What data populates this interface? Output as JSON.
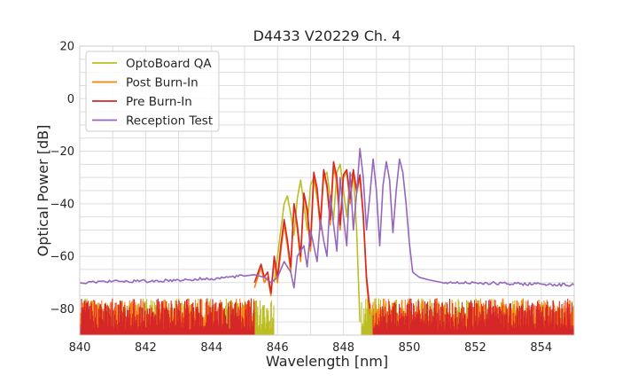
{
  "chart_data": {
    "type": "line",
    "title": "D4433 V20229 Ch. 4",
    "xlabel": "Wavelength [nm]",
    "ylabel": "Optical Power [dB]",
    "xlim": [
      840,
      855
    ],
    "ylim": [
      -90,
      20
    ],
    "xticks": [
      840,
      842,
      844,
      846,
      848,
      850,
      852,
      854
    ],
    "yticks": [
      20,
      0,
      -20,
      -40,
      -60,
      -80
    ],
    "xtick_labels": [
      "840",
      "842",
      "844",
      "846",
      "848",
      "850",
      "852",
      "854"
    ],
    "ytick_labels": [
      "20",
      "0",
      "−20",
      "−40",
      "−60",
      "−80"
    ],
    "grid": true,
    "legend_position": "top-left",
    "series": [
      {
        "name": "OptoBoard QA",
        "color": "#bcbd22",
        "noise_floor": -82,
        "noise_range": [
          840,
          845.9
        ],
        "x": [
          845.9,
          846.0,
          846.1,
          846.2,
          846.3,
          846.4,
          846.5,
          846.6,
          846.7,
          846.8,
          846.9,
          847.0,
          847.1,
          847.2,
          847.3,
          847.4,
          847.5,
          847.6,
          847.7,
          847.8,
          847.9,
          848.0,
          848.1,
          848.2,
          848.3,
          848.4,
          848.5
        ],
        "values": [
          -70,
          -60,
          -50,
          -40,
          -37,
          -44,
          -52,
          -38,
          -31,
          -40,
          -50,
          -33,
          -30,
          -38,
          -46,
          -30,
          -28,
          -38,
          -46,
          -28,
          -25,
          -35,
          -45,
          -30,
          -28,
          -50,
          -85
        ],
        "trailing_noise_from": 848.55
      },
      {
        "name": "Post Burn-In",
        "color": "#ff7f0e",
        "noise_floor": -82,
        "noise_range": [
          840,
          845.3
        ],
        "x": [
          845.3,
          845.5,
          845.6,
          845.7,
          845.8,
          845.9,
          846.0,
          846.1,
          846.2,
          846.3,
          846.4,
          846.5,
          846.6,
          846.7,
          846.8,
          846.9,
          847.0,
          847.1,
          847.2,
          847.3,
          847.4,
          847.5,
          847.6,
          847.7,
          847.8,
          847.9,
          848.0,
          848.1,
          848.2,
          848.3,
          848.4,
          848.5,
          848.6,
          848.7,
          848.8
        ],
        "values": [
          -72,
          -64,
          -70,
          -68,
          -75,
          -62,
          -70,
          -58,
          -48,
          -56,
          -66,
          -40,
          -50,
          -62,
          -36,
          -44,
          -58,
          -30,
          -36,
          -50,
          -28,
          -34,
          -48,
          -26,
          -32,
          -50,
          -30,
          -28,
          -40,
          -28,
          -36,
          -30,
          -45,
          -70,
          -82
        ],
        "trailing_noise_from": 848.9
      },
      {
        "name": "Pre Burn-In",
        "color": "#d62728",
        "noise_floor": -82,
        "noise_range": [
          840,
          845.3
        ],
        "x": [
          845.3,
          845.5,
          845.6,
          845.7,
          845.8,
          845.9,
          846.0,
          846.1,
          846.2,
          846.3,
          846.4,
          846.5,
          846.6,
          846.7,
          846.8,
          846.9,
          847.0,
          847.1,
          847.2,
          847.3,
          847.4,
          847.5,
          847.6,
          847.7,
          847.8,
          847.9,
          848.0,
          848.1,
          848.2,
          848.3,
          848.4,
          848.5,
          848.6,
          848.7,
          848.8
        ],
        "values": [
          -70,
          -63,
          -68,
          -66,
          -74,
          -60,
          -68,
          -56,
          -46,
          -54,
          -64,
          -40,
          -48,
          -60,
          -36,
          -42,
          -56,
          -28,
          -34,
          -48,
          -27,
          -33,
          -46,
          -24,
          -30,
          -48,
          -29,
          -27,
          -38,
          -27,
          -35,
          -29,
          -44,
          -68,
          -80
        ],
        "trailing_noise_from": 848.9
      },
      {
        "name": "Reception Test",
        "color": "#9467bd",
        "baseline": -70,
        "x": [
          840,
          841,
          842,
          843,
          844,
          844.5,
          845,
          845.3,
          845.6,
          845.8,
          846.0,
          846.2,
          846.4,
          846.5,
          846.6,
          846.8,
          846.9,
          847.0,
          847.1,
          847.2,
          847.3,
          847.4,
          847.5,
          847.6,
          847.7,
          847.8,
          847.9,
          848.0,
          848.1,
          848.2,
          848.3,
          848.4,
          848.5,
          848.6,
          848.7,
          848.8,
          848.9,
          849.0,
          849.1,
          849.2,
          849.3,
          849.4,
          849.5,
          849.6,
          849.7,
          849.8,
          849.9,
          850.0,
          850.1,
          850.3,
          850.6,
          851,
          852,
          853,
          854,
          855
        ],
        "values": [
          -70,
          -69.5,
          -69.5,
          -69,
          -68.5,
          -68,
          -67.5,
          -67,
          -68,
          -70,
          -68,
          -62,
          -66,
          -72,
          -60,
          -56,
          -64,
          -50,
          -56,
          -62,
          -46,
          -54,
          -60,
          -37,
          -48,
          -58,
          -30,
          -45,
          -56,
          -28,
          -50,
          -36,
          -19,
          -30,
          -50,
          -37,
          -23,
          -35,
          -56,
          -33,
          -24,
          -31,
          -51,
          -35,
          -23,
          -28,
          -40,
          -55,
          -66,
          -68,
          -69,
          -70,
          -70,
          -70.5,
          -70.5,
          -71
        ]
      }
    ]
  }
}
